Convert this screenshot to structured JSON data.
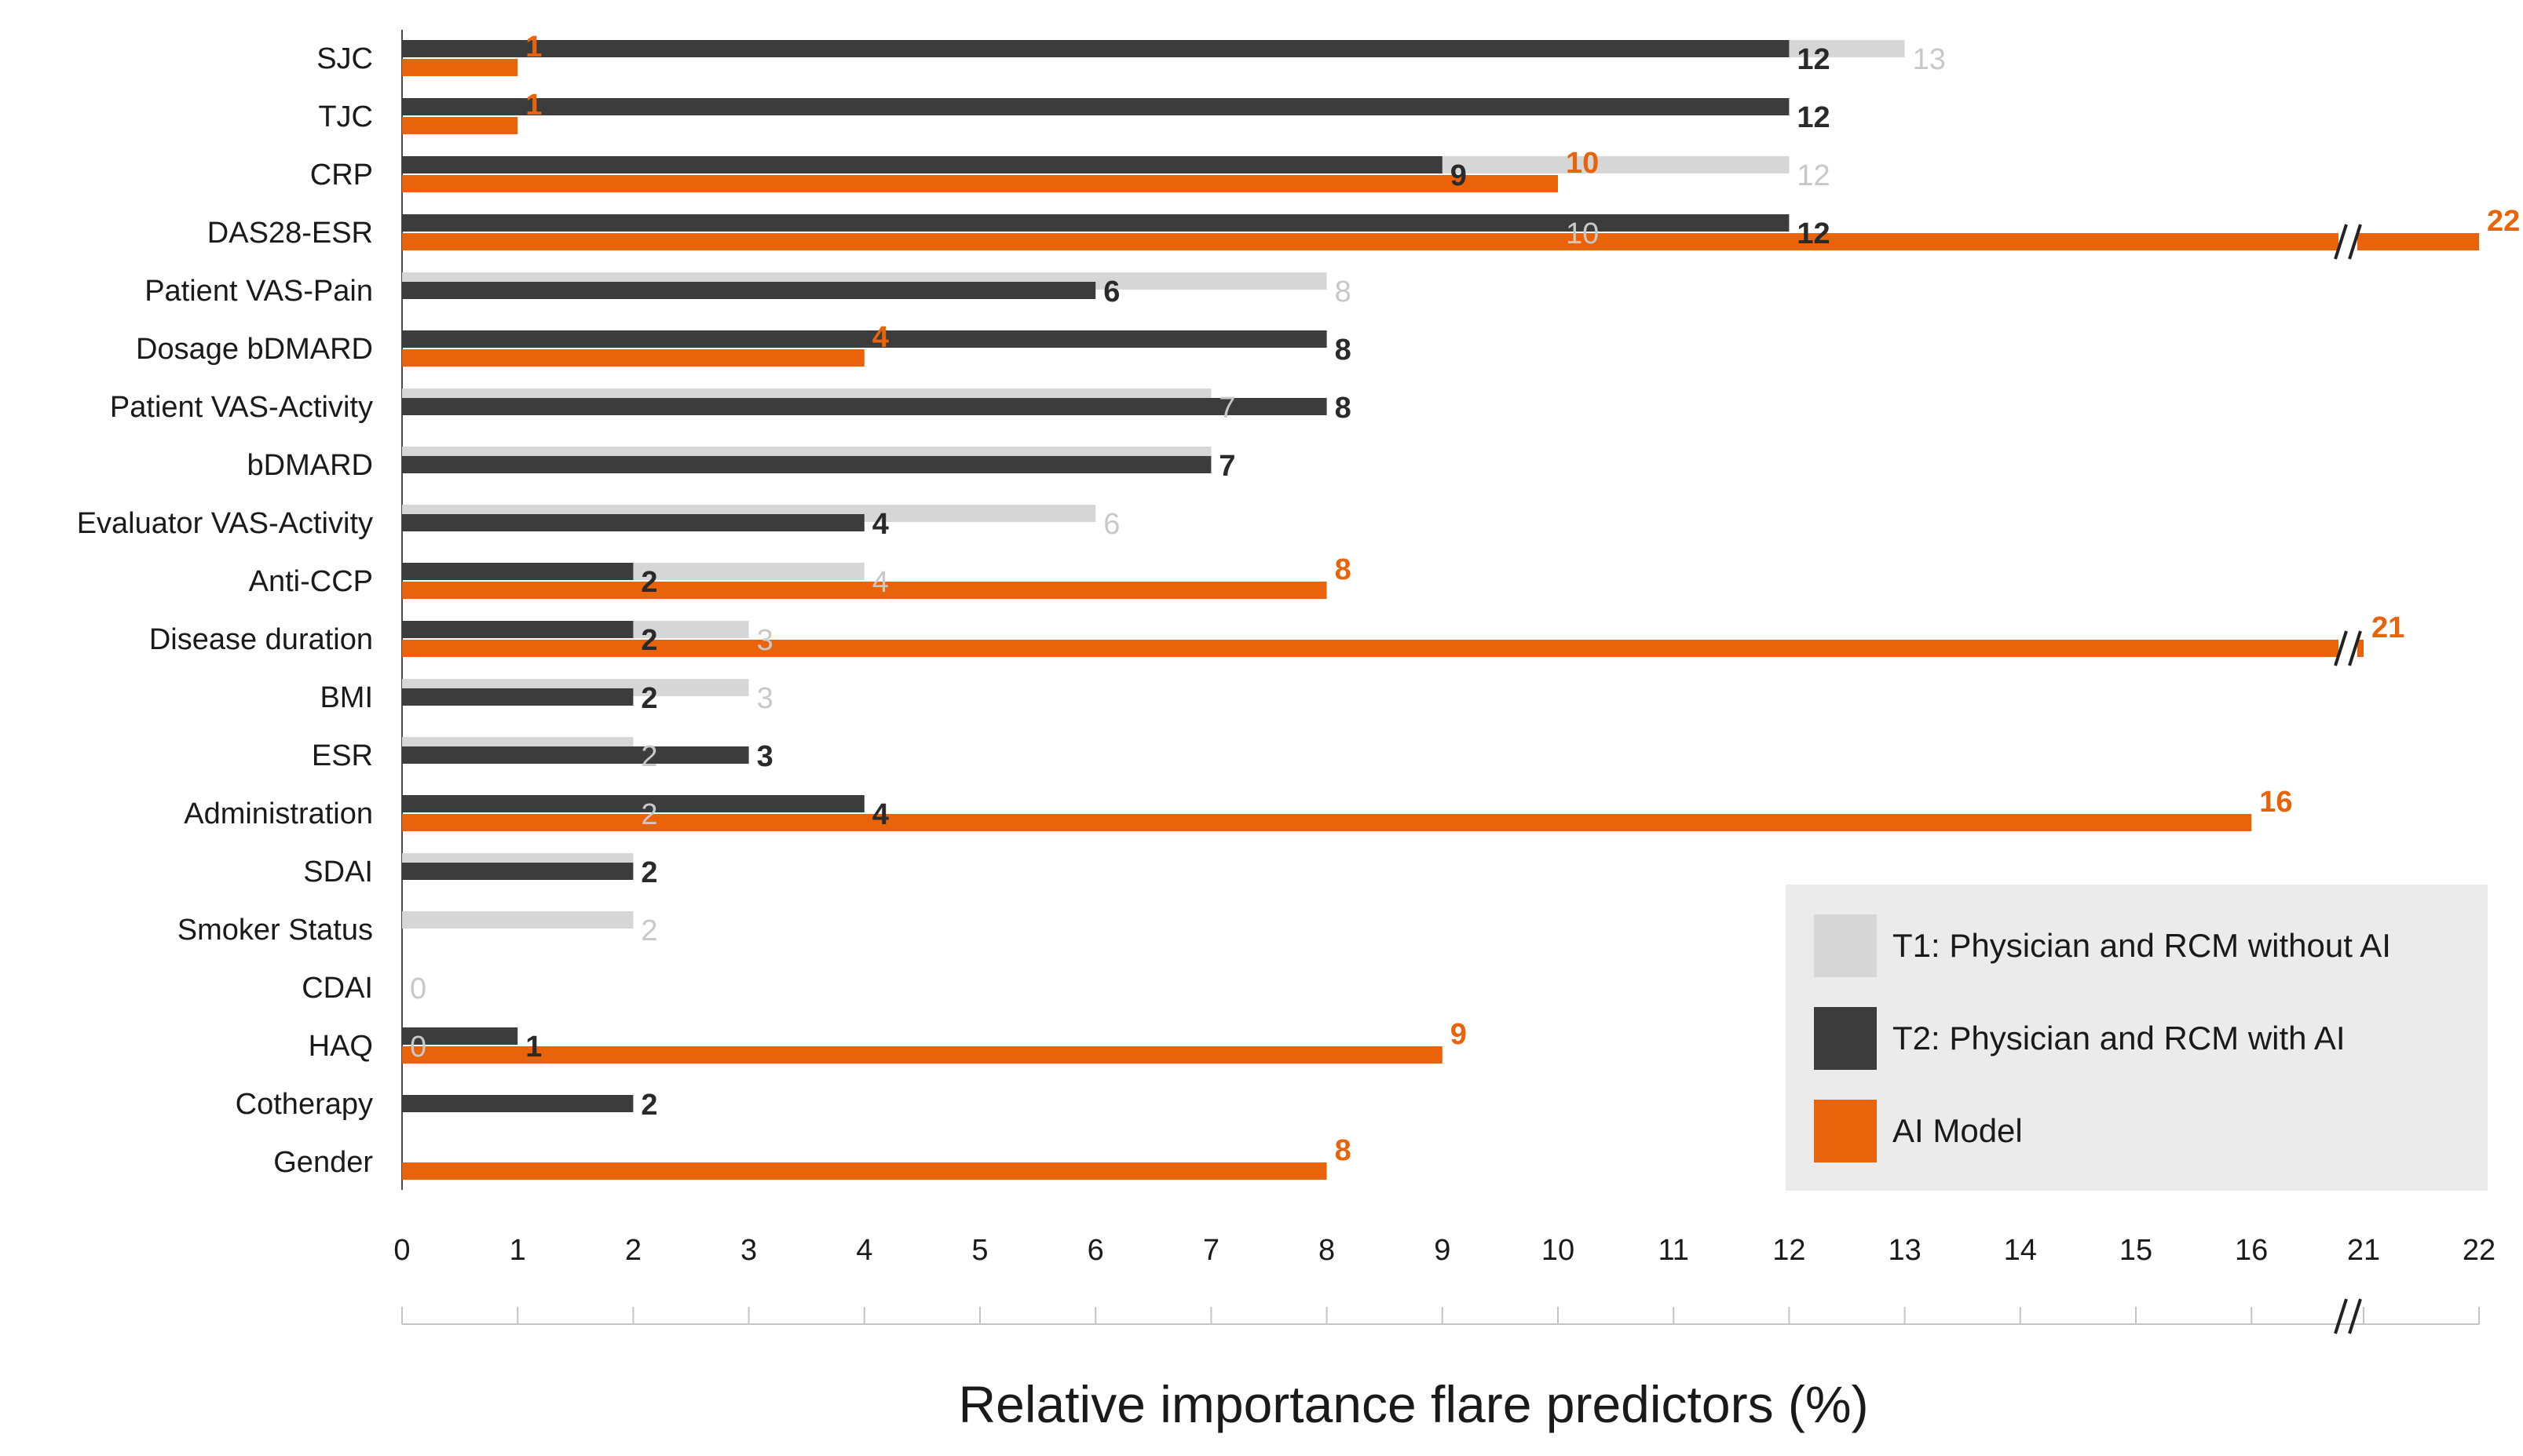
{
  "chart_data": {
    "type": "bar",
    "orientation": "horizontal",
    "xlabel": "Relative importance flare predictors (%)",
    "x_ticks": [
      "0",
      "1",
      "2",
      "3",
      "4",
      "5",
      "6",
      "7",
      "8",
      "9",
      "10",
      "11",
      "12",
      "13",
      "14",
      "15",
      "16",
      "21",
      "22"
    ],
    "axis_break": "between 16 and 21",
    "grid": false,
    "legend_position": "bottom-right",
    "categories": [
      "SJC",
      "TJC",
      "CRP",
      "DAS28-ESR",
      "Patient VAS-Pain",
      "Dosage bDMARD",
      "Patient VAS-Activity",
      "bDMARD",
      "Evaluator VAS-Activity",
      "Anti-CCP",
      "Disease duration",
      "BMI",
      "ESR",
      "Administration",
      "SDAI",
      "Smoker Status",
      "CDAI",
      "HAQ",
      "Cotherapy",
      "Gender"
    ],
    "series": [
      {
        "name": "T1: Physician and RCM without AI",
        "color": "#d6d6d6",
        "values": [
          13,
          12,
          12,
          10,
          8,
          8,
          7,
          7,
          6,
          4,
          3,
          3,
          2,
          2,
          2,
          2,
          0,
          0,
          null,
          null
        ],
        "labels": [
          "13",
          "12",
          "12",
          "10",
          "8",
          "8",
          "7",
          "7",
          "6",
          "4",
          "3",
          "3",
          "2",
          "2",
          "2",
          "2",
          "0",
          "0",
          "",
          ""
        ]
      },
      {
        "name": "T2: Physician and RCM with AI",
        "color": "#3c3c3c",
        "values": [
          12,
          12,
          9,
          12,
          6,
          8,
          8,
          7,
          4,
          2,
          2,
          2,
          3,
          4,
          2,
          null,
          null,
          1,
          2,
          null
        ],
        "labels": [
          "12",
          "12",
          "9",
          "12",
          "6",
          "8",
          "8",
          "7",
          "4",
          "2",
          "2",
          "2",
          "3",
          "4",
          "2",
          "",
          "",
          "1",
          "2",
          ""
        ]
      },
      {
        "name": "AI Model",
        "color": "#e8630a",
        "values": [
          1,
          1,
          10,
          22,
          null,
          4,
          null,
          null,
          null,
          8,
          21,
          null,
          null,
          16,
          null,
          null,
          null,
          9,
          null,
          8
        ],
        "labels": [
          "1",
          "1",
          "10",
          "22",
          "",
          "4",
          "",
          "",
          "",
          "8",
          "21",
          "",
          "",
          "16",
          "",
          "",
          "",
          "9",
          "",
          "8"
        ]
      }
    ]
  }
}
